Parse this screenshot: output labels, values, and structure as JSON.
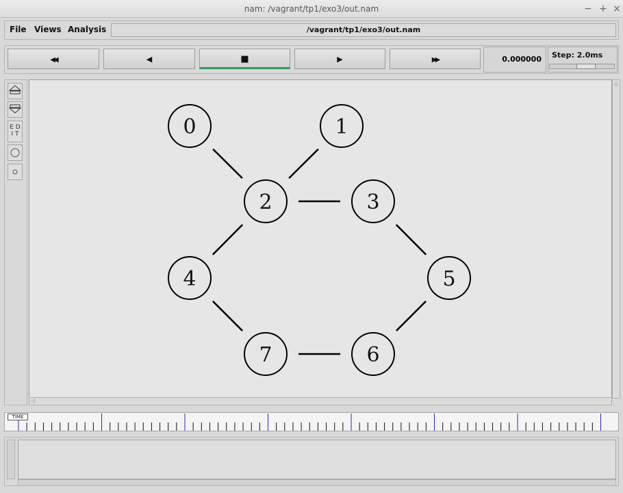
{
  "window": {
    "title": "nam: /vagrant/tp1/exo3/out.nam",
    "controls": [
      "−",
      "+",
      "×"
    ]
  },
  "menubar": {
    "items": [
      {
        "label": "File"
      },
      {
        "label": "Views"
      },
      {
        "label": "Analysis"
      }
    ],
    "file_path": "/vagrant/tp1/exo3/out.nam"
  },
  "playback": {
    "buttons": [
      {
        "name": "rewind-fast",
        "glyph": "◀◀"
      },
      {
        "name": "rewind",
        "glyph": "◀"
      },
      {
        "name": "stop",
        "glyph": "■"
      },
      {
        "name": "play",
        "glyph": "▶"
      },
      {
        "name": "forward-fast",
        "glyph": "▶▶"
      }
    ],
    "active": "stop",
    "time": "0.000000",
    "step_label": "Step: 2.0ms"
  },
  "tools": {
    "edit_label": "E D\nI T"
  },
  "timeline": {
    "tag": "TIME"
  },
  "network": {
    "nodes": [
      {
        "id": "0",
        "label": "0"
      },
      {
        "id": "1",
        "label": "1"
      },
      {
        "id": "2",
        "label": "2"
      },
      {
        "id": "3",
        "label": "3"
      },
      {
        "id": "4",
        "label": "4"
      },
      {
        "id": "5",
        "label": "5"
      },
      {
        "id": "6",
        "label": "6"
      },
      {
        "id": "7",
        "label": "7"
      }
    ],
    "links": [
      [
        "0",
        "2"
      ],
      [
        "1",
        "2"
      ],
      [
        "2",
        "3"
      ],
      [
        "2",
        "4"
      ],
      [
        "3",
        "5"
      ],
      [
        "4",
        "7"
      ],
      [
        "5",
        "6"
      ],
      [
        "6",
        "7"
      ]
    ]
  },
  "colors": {
    "active_button": "#2e9c5e",
    "canvas": "#e6e6e6"
  }
}
